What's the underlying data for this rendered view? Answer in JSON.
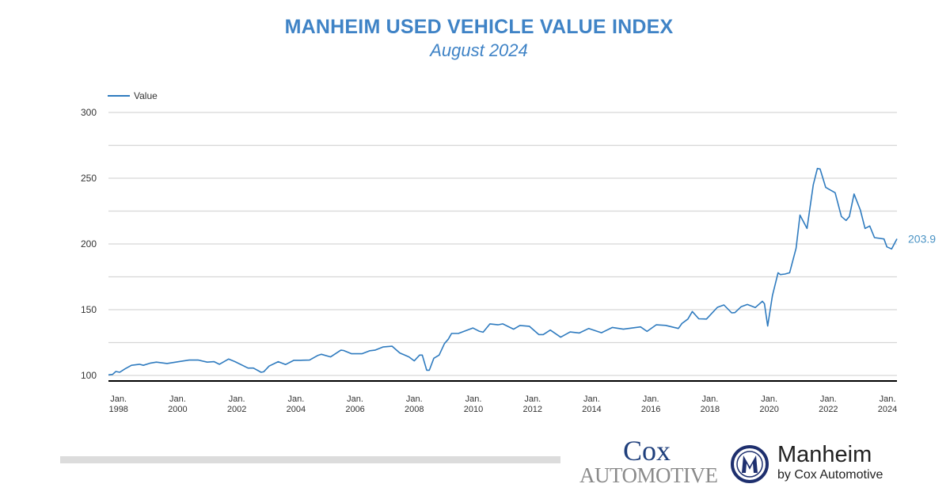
{
  "header": {
    "title": "MANHEIM USED VEHICLE VALUE INDEX",
    "subtitle": "August 2024"
  },
  "logos": {
    "cox_line1": "Cox",
    "cox_line2": "AUTOMOTIVE",
    "manheim_line1": "Manheim",
    "manheim_line2": "by Cox Automotive"
  },
  "colors": {
    "title": "#3f83c6",
    "line": "#2f7bbf",
    "end_label": "#4a93c4",
    "grid": "#d6d6d6",
    "axis": "#000000"
  },
  "chart_data": {
    "type": "line",
    "title": "MANHEIM USED VEHICLE VALUE INDEX",
    "subtitle": "August 2024",
    "legend": {
      "position": "top-left",
      "entries": [
        "Value"
      ]
    },
    "ylim": [
      100,
      300
    ],
    "yticks": [
      100,
      150,
      200,
      250,
      300
    ],
    "grid": true,
    "grid_step": 25,
    "xlim": [
      1997.66,
      2024.32
    ],
    "xticks": [
      {
        "year": 1998,
        "line1": "Jan.",
        "line2": "1998"
      },
      {
        "year": 2000,
        "line1": "Jan.",
        "line2": "2000"
      },
      {
        "year": 2002,
        "line1": "Jan.",
        "line2": "2002"
      },
      {
        "year": 2004,
        "line1": "Jan.",
        "line2": "2004"
      },
      {
        "year": 2006,
        "line1": "Jan.",
        "line2": "2006"
      },
      {
        "year": 2008,
        "line1": "Jan.",
        "line2": "2008"
      },
      {
        "year": 2010,
        "line1": "Jan.",
        "line2": "2010"
      },
      {
        "year": 2012,
        "line1": "Jan.",
        "line2": "2012"
      },
      {
        "year": 2014,
        "line1": "Jan.",
        "line2": "2014"
      },
      {
        "year": 2016,
        "line1": "Jan.",
        "line2": "2016"
      },
      {
        "year": 2018,
        "line1": "Jan.",
        "line2": "2018"
      },
      {
        "year": 2020,
        "line1": "Jan.",
        "line2": "2020"
      },
      {
        "year": 2022,
        "line1": "Jan.",
        "line2": "2022"
      },
      {
        "year": 2024,
        "line1": "Jan.",
        "line2": "2024"
      }
    ],
    "end_label": "203.9",
    "series": [
      {
        "name": "Value",
        "x": [
          1997.66,
          1997.8,
          1997.91,
          1998.04,
          1998.22,
          1998.44,
          1998.71,
          1998.84,
          1999.06,
          1999.28,
          1999.64,
          2000.04,
          2000.39,
          2000.7,
          2001.0,
          2001.23,
          2001.41,
          2001.72,
          2001.94,
          2002.38,
          2002.56,
          2002.82,
          2002.91,
          2003.09,
          2003.4,
          2003.65,
          2003.93,
          2004.15,
          2004.46,
          2004.73,
          2004.86,
          2005.17,
          2005.52,
          2005.61,
          2005.88,
          2006.23,
          2006.5,
          2006.67,
          2006.94,
          2007.25,
          2007.51,
          2007.82,
          2008.0,
          2008.18,
          2008.27,
          2008.42,
          2008.51,
          2008.66,
          2008.84,
          2009.02,
          2009.15,
          2009.26,
          2009.5,
          2009.98,
          2010.19,
          2010.33,
          2010.56,
          2010.83,
          2010.99,
          2011.36,
          2011.57,
          2011.89,
          2012.21,
          2012.36,
          2012.6,
          2012.95,
          2013.27,
          2013.58,
          2013.9,
          2014.33,
          2014.7,
          2015.07,
          2015.65,
          2015.87,
          2016.18,
          2016.5,
          2016.93,
          2017.05,
          2017.25,
          2017.4,
          2017.62,
          2017.88,
          2018.25,
          2018.47,
          2018.73,
          2018.84,
          2019.05,
          2019.26,
          2019.53,
          2019.77,
          2019.84,
          2019.95,
          2020.11,
          2020.3,
          2020.38,
          2020.53,
          2020.69,
          2020.91,
          2021.04,
          2021.28,
          2021.49,
          2021.63,
          2021.72,
          2021.91,
          2022.07,
          2022.23,
          2022.44,
          2022.6,
          2022.71,
          2022.87,
          2023.08,
          2023.24,
          2023.4,
          2023.56,
          2023.88,
          2023.98,
          2024.14,
          2024.32
        ],
        "values": [
          100.4,
          100.8,
          103,
          102.4,
          105,
          107.7,
          108.5,
          107.7,
          109.3,
          110.1,
          109.1,
          110.5,
          111.7,
          111.7,
          110.1,
          110.5,
          108.5,
          112.5,
          110.5,
          105.6,
          105.6,
          102.4,
          102.8,
          107.1,
          110.5,
          108.3,
          111.5,
          111.5,
          111.7,
          115.1,
          116.1,
          114.1,
          119.2,
          119,
          116.5,
          116.5,
          118.8,
          119.2,
          121.6,
          122.2,
          117.1,
          114.1,
          111.1,
          115.5,
          115.5,
          104,
          104,
          113.1,
          115.5,
          124.2,
          127.6,
          131.9,
          132,
          136.1,
          133.7,
          132.9,
          139.2,
          138.5,
          139.2,
          135.2,
          138,
          137.4,
          131.1,
          131.1,
          134.5,
          129.1,
          133.1,
          132.3,
          135.7,
          132.5,
          136.5,
          135.2,
          136.9,
          133.5,
          138.5,
          138.1,
          135.7,
          139.5,
          142.9,
          148.6,
          143.1,
          142.9,
          151.8,
          153.6,
          147.6,
          147.8,
          152.2,
          154,
          151.6,
          156.4,
          154.6,
          137.6,
          160.7,
          178.1,
          176.7,
          177.1,
          178.1,
          196.8,
          221.9,
          211.8,
          245,
          257.4,
          257,
          243,
          241,
          239,
          220.9,
          217.9,
          220.9,
          238,
          225.9,
          211.8,
          213.7,
          204.8,
          203.8,
          197.8,
          196.2,
          203.9
        ]
      }
    ]
  }
}
